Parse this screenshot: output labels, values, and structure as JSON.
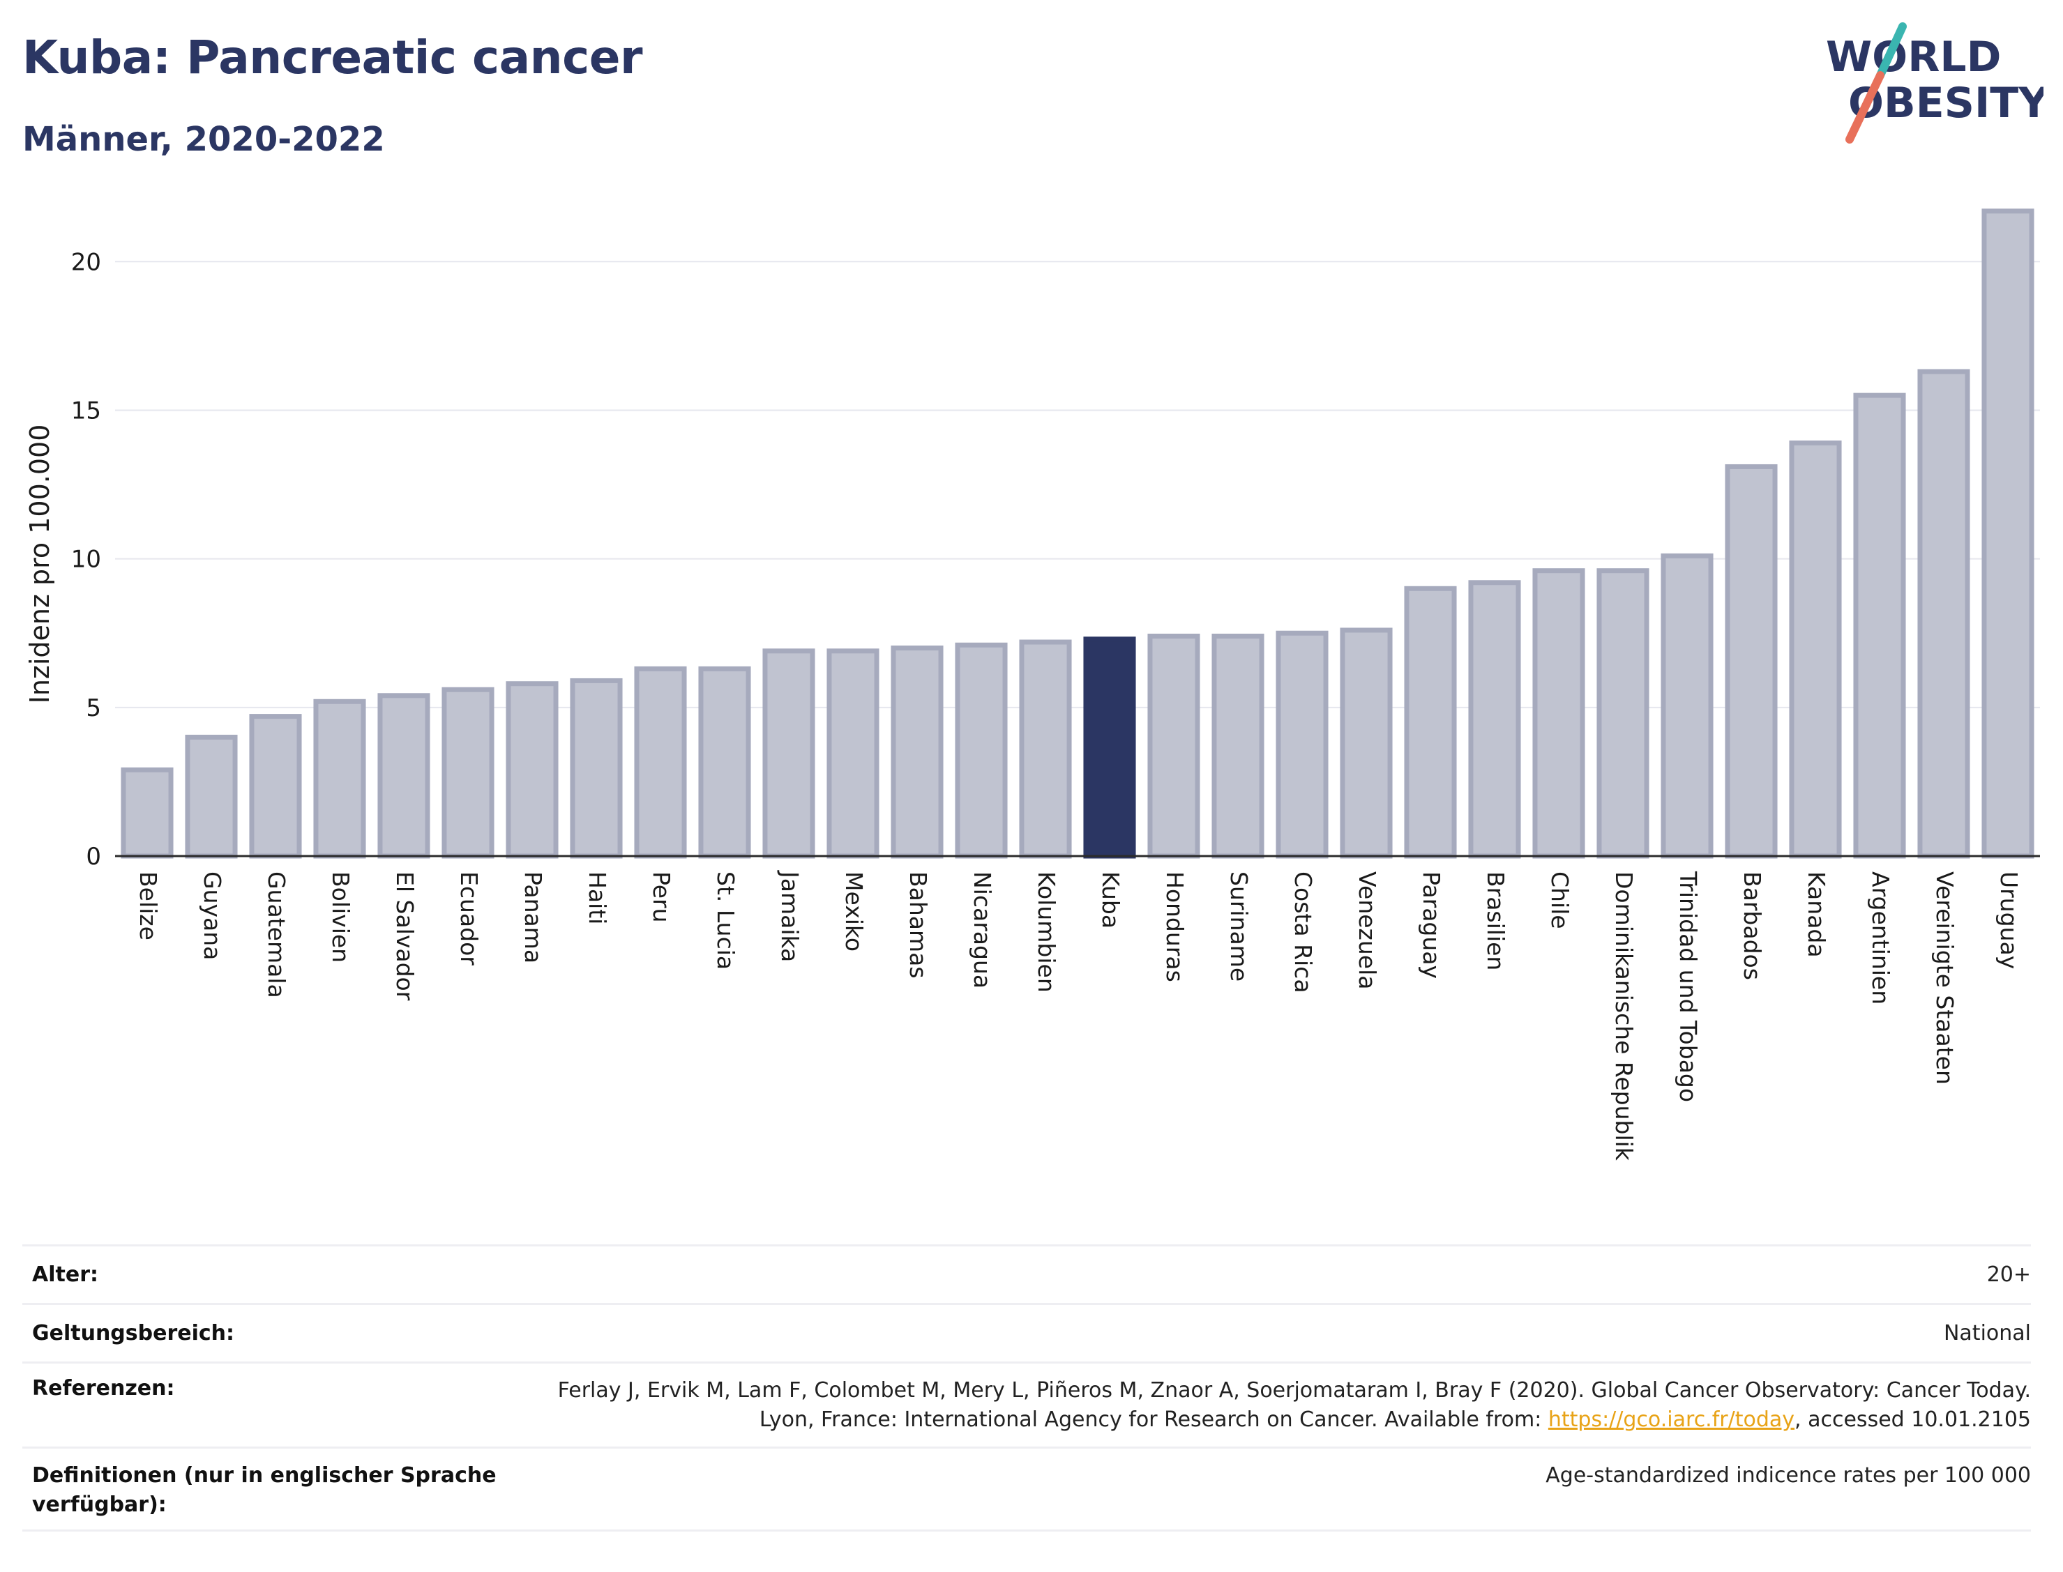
{
  "header": {
    "title": "Kuba: Pancreatic cancer",
    "subtitle": "Männer, 2020-2022"
  },
  "logo": {
    "line1": "WORLD",
    "line2": "OBESITY",
    "accent_teal": "#3ab5b0",
    "accent_coral": "#e8705a"
  },
  "chart_data": {
    "type": "bar",
    "title": "Kuba: Pancreatic cancer",
    "subtitle": "Männer, 2020-2022",
    "xlabel": "",
    "ylabel": "Inzidenz pro 100.000",
    "ylim": [
      0,
      22
    ],
    "yticks": [
      0,
      5,
      10,
      15,
      20
    ],
    "grid": true,
    "highlight": "Kuba",
    "colors": {
      "bar": "#c0c3d0",
      "bar_edge": "#a6aabd",
      "highlight": "#2b3663"
    },
    "categories": [
      "Belize",
      "Guyana",
      "Guatemala",
      "Bolivien",
      "El Salvador",
      "Ecuador",
      "Panama",
      "Haiti",
      "Peru",
      "St. Lucia",
      "Jamaika",
      "Mexiko",
      "Bahamas",
      "Nicaragua",
      "Kolumbien",
      "Kuba",
      "Honduras",
      "Suriname",
      "Costa Rica",
      "Venezuela",
      "Paraguay",
      "Brasilien",
      "Chile",
      "Dominikanische Republik",
      "Trinidad und Tobago",
      "Barbados",
      "Kanada",
      "Argentinien",
      "Vereinigte Staaten",
      "Uruguay"
    ],
    "values": [
      2.9,
      4.0,
      4.7,
      5.2,
      5.4,
      5.6,
      5.8,
      5.9,
      6.3,
      6.3,
      6.9,
      6.9,
      7.0,
      7.1,
      7.2,
      7.3,
      7.4,
      7.4,
      7.5,
      7.6,
      9.0,
      9.2,
      9.6,
      9.6,
      10.1,
      13.1,
      13.9,
      15.5,
      16.3,
      21.7
    ]
  },
  "metadata": {
    "rows": [
      {
        "label": "Alter:",
        "value": "20+"
      },
      {
        "label": "Geltungsbereich:",
        "value": "National"
      },
      {
        "label": "Referenzen:",
        "value_pre": "Ferlay J, Ervik M, Lam F, Colombet M, Mery L, Piñeros M, Znaor A, Soerjomataram I, Bray F (2020). Global Cancer Observatory: Cancer Today. Lyon, France: International Agency for Research on Cancer. Available from: ",
        "link": "https://gco.iarc.fr/today",
        "value_post": ", accessed 10.01.2105"
      },
      {
        "label": "Definitionen (nur in englischer Sprache verfügbar):",
        "value": "Age-standardized indicence rates per 100 000"
      }
    ]
  }
}
